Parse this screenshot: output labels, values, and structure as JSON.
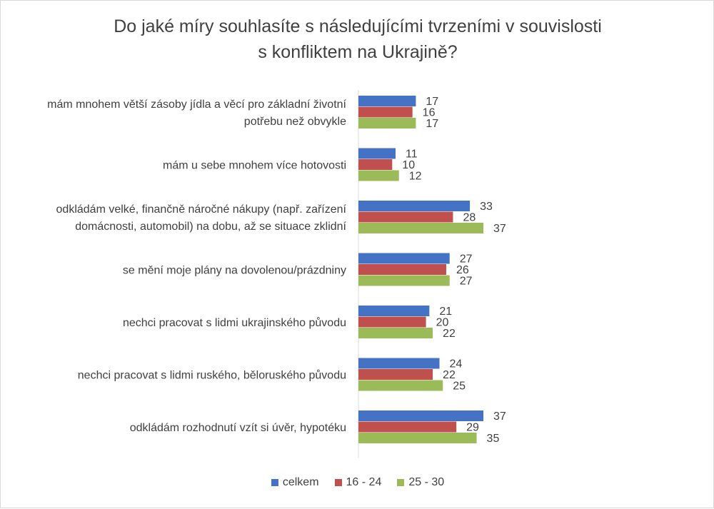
{
  "chart_data": {
    "type": "bar",
    "orientation": "horizontal",
    "title": [
      "Do jaké míry souhlasíte s následujícími tvrzeními v souvislosti",
      "s konfliktem na Ukrajině?"
    ],
    "categories": [
      [
        "mám mnohem větší zásoby jídla a věcí pro základní životní",
        "potřebu než obvykle"
      ],
      [
        "mám u sebe mnohem více hotovosti"
      ],
      [
        "odkládám velké, finančně náročné nákupy (např. zařízení",
        "domácnosti, automobil) na dobu, až se situace zklidní"
      ],
      [
        "se mění moje plány na dovolenou/prázdniny"
      ],
      [
        "nechci pracovat s lidmi ukrajinského původu"
      ],
      [
        "nechci pracovat s lidmi ruského, běloruského původu"
      ],
      [
        "odkládám rozhodnutí vzít si úvěr, hypotéku"
      ]
    ],
    "series": [
      {
        "name": "celkem",
        "color": "#4472c4",
        "values": [
          17,
          11,
          33,
          27,
          21,
          24,
          37
        ]
      },
      {
        "name": "16 - 24",
        "color": "#c0504d",
        "values": [
          16,
          10,
          28,
          26,
          20,
          22,
          29
        ]
      },
      {
        "name": "25 - 30",
        "color": "#9bbb59",
        "values": [
          17,
          12,
          37,
          27,
          22,
          25,
          35
        ]
      }
    ],
    "xlim": [
      0,
      100
    ],
    "grid": false,
    "legend": "bottom",
    "data_labels": true
  }
}
